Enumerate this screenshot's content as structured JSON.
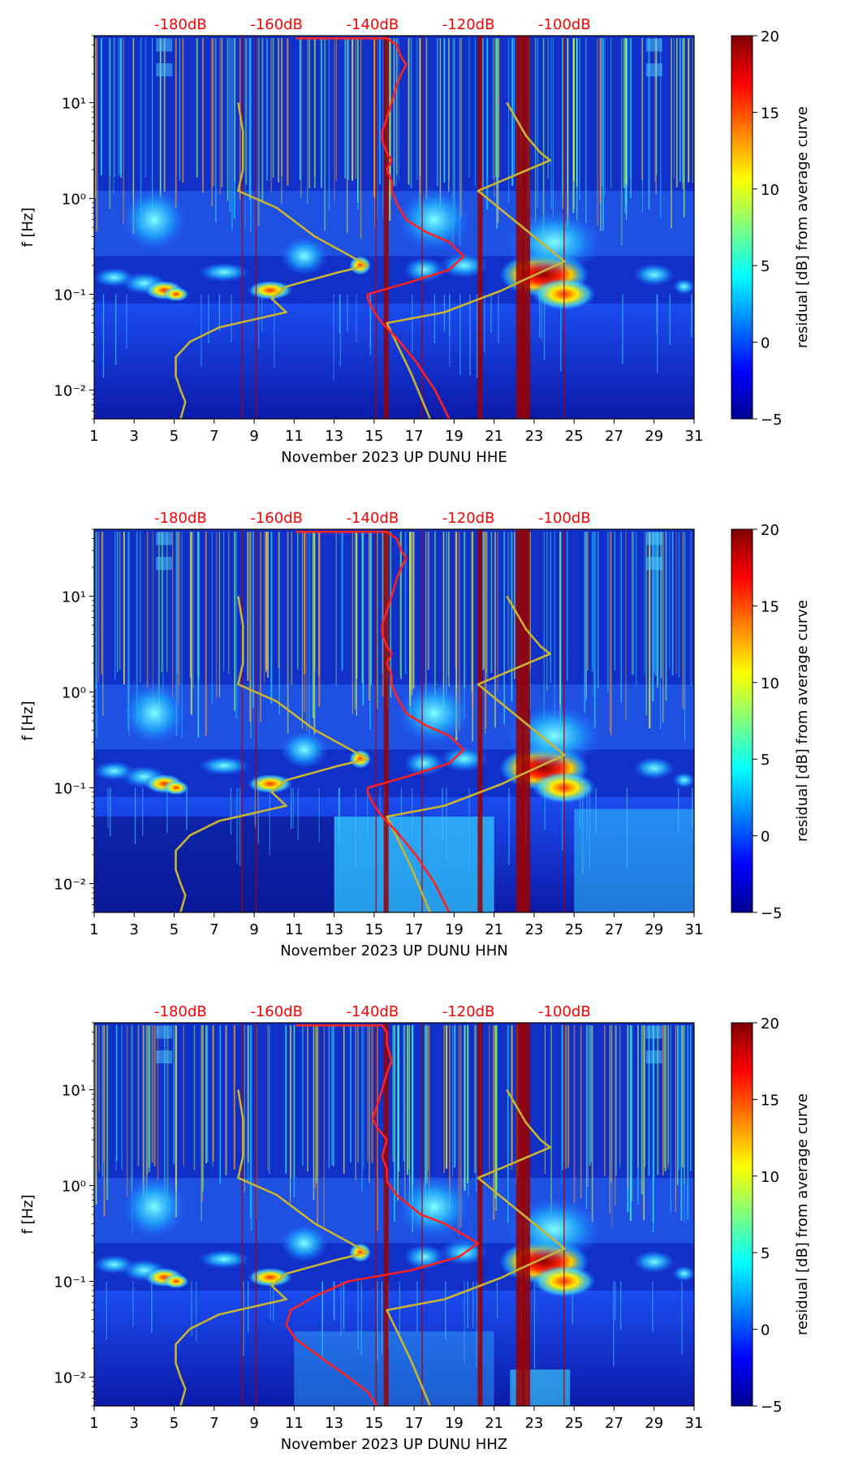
{
  "figure": {
    "kind": "spectrogram-residual-panels"
  },
  "colors": {
    "red_curve": "#ff2020",
    "yellow_curve": "#c8b432",
    "top_labels": "#ff0000",
    "background_field": "#1030c8"
  },
  "chart_data": [
    {
      "type": "heatmap",
      "title": "",
      "xlabel": "November 2023 UP DUNU  HHE",
      "ylabel": "f [Hz]",
      "x_range": [
        1,
        31
      ],
      "x_ticks": [
        "1",
        "3",
        "5",
        "7",
        "9",
        "11",
        "13",
        "15",
        "17",
        "19",
        "21",
        "23",
        "25",
        "27",
        "29",
        "31"
      ],
      "y_scale": "log",
      "y_range": [
        0.005,
        50
      ],
      "y_ticks": [
        "10⁻²",
        "10⁻¹",
        "10⁰",
        "10¹"
      ],
      "colorbar": {
        "label": "residual [dB] from average curve",
        "range": [
          -5,
          20
        ],
        "ticks": [
          "−5",
          "0",
          "5",
          "10",
          "15",
          "20"
        ]
      },
      "top_axis_labels": [
        "-180dB",
        "-160dB",
        "-140dB",
        "-120dB",
        "-100dB"
      ],
      "top_axis_db": [
        -180,
        -160,
        -140,
        -120,
        -100
      ],
      "red_curve": {
        "name": "mean PSD",
        "points": [
          [
            -156,
            47
          ],
          [
            -137,
            47
          ],
          [
            -135,
            40
          ],
          [
            -134,
            30
          ],
          [
            -133,
            25
          ],
          [
            -134,
            20
          ],
          [
            -135,
            15
          ],
          [
            -136,
            10
          ],
          [
            -137,
            7
          ],
          [
            -138,
            5
          ],
          [
            -138,
            4
          ],
          [
            -137,
            3
          ],
          [
            -136,
            2.5
          ],
          [
            -137,
            2
          ],
          [
            -136,
            1.5
          ],
          [
            -136,
            1.2
          ],
          [
            -135,
            0.9
          ],
          [
            -133,
            0.6
          ],
          [
            -129,
            0.45
          ],
          [
            -124,
            0.35
          ],
          [
            -121,
            0.25
          ],
          [
            -124,
            0.18
          ],
          [
            -133,
            0.13
          ],
          [
            -141,
            0.1
          ],
          [
            -141,
            0.09
          ],
          [
            -140,
            0.07
          ],
          [
            -138,
            0.05
          ],
          [
            -135,
            0.035
          ],
          [
            -131,
            0.02
          ],
          [
            -127,
            0.01
          ],
          [
            -124,
            0.005
          ]
        ]
      },
      "yellow_curve": {
        "name": "noise model",
        "points": [
          [
            -168,
            10
          ],
          [
            -167,
            5
          ],
          [
            -167,
            2
          ],
          [
            -168,
            1.2
          ],
          [
            -160,
            0.8
          ],
          [
            -152,
            0.4
          ],
          [
            -141,
            0.2
          ],
          [
            -147,
            0.17
          ],
          [
            -158,
            0.12
          ],
          [
            -161,
            0.09
          ],
          [
            -158,
            0.065
          ],
          [
            -172,
            0.045
          ],
          [
            -178,
            0.032
          ],
          [
            -181,
            0.022
          ],
          [
            -181,
            0.014
          ],
          [
            -180,
            0.01
          ],
          [
            -179,
            0.0075
          ],
          [
            -180,
            0.005
          ]
        ]
      },
      "yellow_curve_right": {
        "name": "noise model (high)",
        "points": [
          [
            -112,
            10
          ],
          [
            -108,
            4.5
          ],
          [
            -105,
            3
          ],
          [
            -103,
            2.5
          ],
          [
            -118,
            1.2
          ],
          [
            -100,
            0.22
          ],
          [
            -110,
            0.13
          ],
          [
            -113,
            0.11
          ],
          [
            -125,
            0.065
          ],
          [
            -137,
            0.05
          ],
          [
            -132,
            0.015
          ],
          [
            -128,
            0.005
          ]
        ]
      },
      "vertical_lines_days": [
        15.6,
        20.3,
        22.3,
        22.6
      ]
    },
    {
      "type": "heatmap",
      "title": "",
      "xlabel": "November 2023 UP DUNU  HHN",
      "ylabel": "f [Hz]",
      "x_range": [
        1,
        31
      ],
      "x_ticks": [
        "1",
        "3",
        "5",
        "7",
        "9",
        "11",
        "13",
        "15",
        "17",
        "19",
        "21",
        "23",
        "25",
        "27",
        "29",
        "31"
      ],
      "y_scale": "log",
      "y_range": [
        0.005,
        50
      ],
      "y_ticks": [
        "10⁻²",
        "10⁻¹",
        "10⁰",
        "10¹"
      ],
      "colorbar": {
        "label": "residual [dB] from average curve",
        "range": [
          -5,
          20
        ],
        "ticks": [
          "−5",
          "0",
          "5",
          "10",
          "15",
          "20"
        ]
      },
      "top_axis_labels": [
        "-180dB",
        "-160dB",
        "-140dB",
        "-120dB",
        "-100dB"
      ],
      "top_axis_db": [
        -180,
        -160,
        -140,
        -120,
        -100
      ],
      "red_curve": {
        "name": "mean PSD",
        "points": [
          [
            -156,
            47
          ],
          [
            -137,
            47
          ],
          [
            -135,
            40
          ],
          [
            -134,
            30
          ],
          [
            -133,
            25
          ],
          [
            -134,
            20
          ],
          [
            -135,
            15
          ],
          [
            -136,
            10
          ],
          [
            -137,
            7
          ],
          [
            -138,
            5
          ],
          [
            -138,
            4
          ],
          [
            -137,
            3
          ],
          [
            -136,
            2.5
          ],
          [
            -137,
            2
          ],
          [
            -136,
            1.5
          ],
          [
            -136,
            1.2
          ],
          [
            -135,
            0.9
          ],
          [
            -133,
            0.6
          ],
          [
            -129,
            0.45
          ],
          [
            -124,
            0.35
          ],
          [
            -121,
            0.25
          ],
          [
            -124,
            0.18
          ],
          [
            -133,
            0.13
          ],
          [
            -141,
            0.1
          ],
          [
            -141,
            0.09
          ],
          [
            -140,
            0.07
          ],
          [
            -138,
            0.05
          ],
          [
            -135,
            0.035
          ],
          [
            -131,
            0.02
          ],
          [
            -127,
            0.01
          ],
          [
            -124,
            0.005
          ]
        ]
      },
      "yellow_curve": {
        "name": "noise model",
        "points": [
          [
            -168,
            10
          ],
          [
            -167,
            5
          ],
          [
            -167,
            2
          ],
          [
            -168,
            1.2
          ],
          [
            -160,
            0.8
          ],
          [
            -152,
            0.4
          ],
          [
            -141,
            0.2
          ],
          [
            -147,
            0.17
          ],
          [
            -158,
            0.12
          ],
          [
            -161,
            0.09
          ],
          [
            -158,
            0.065
          ],
          [
            -172,
            0.045
          ],
          [
            -178,
            0.032
          ],
          [
            -181,
            0.022
          ],
          [
            -181,
            0.014
          ],
          [
            -180,
            0.01
          ],
          [
            -179,
            0.0075
          ],
          [
            -180,
            0.005
          ]
        ]
      },
      "yellow_curve_right": {
        "name": "noise model (high)",
        "points": [
          [
            -112,
            10
          ],
          [
            -108,
            4.5
          ],
          [
            -105,
            3
          ],
          [
            -103,
            2.5
          ],
          [
            -118,
            1.2
          ],
          [
            -100,
            0.22
          ],
          [
            -110,
            0.13
          ],
          [
            -113,
            0.11
          ],
          [
            -125,
            0.065
          ],
          [
            -137,
            0.05
          ],
          [
            -132,
            0.015
          ],
          [
            -128,
            0.005
          ]
        ]
      },
      "vertical_lines_days": [
        15.6,
        20.3,
        22.3,
        22.6
      ]
    },
    {
      "type": "heatmap",
      "title": "",
      "xlabel": "November 2023 UP DUNU  HHZ",
      "ylabel": "f [Hz]",
      "x_range": [
        1,
        31
      ],
      "x_ticks": [
        "1",
        "3",
        "5",
        "7",
        "9",
        "11",
        "13",
        "15",
        "17",
        "19",
        "21",
        "23",
        "25",
        "27",
        "29",
        "31"
      ],
      "y_scale": "log",
      "y_range": [
        0.005,
        50
      ],
      "y_ticks": [
        "10⁻²",
        "10⁻¹",
        "10⁰",
        "10¹"
      ],
      "colorbar": {
        "label": "residual [dB] from average curve",
        "range": [
          -5,
          20
        ],
        "ticks": [
          "−5",
          "0",
          "5",
          "10",
          "15",
          "20"
        ]
      },
      "top_axis_labels": [
        "-180dB",
        "-160dB",
        "-140dB",
        "-120dB",
        "-100dB"
      ],
      "top_axis_db": [
        -180,
        -160,
        -140,
        -120,
        -100
      ],
      "red_curve": {
        "name": "mean PSD",
        "points": [
          [
            -156,
            47
          ],
          [
            -138,
            47
          ],
          [
            -137,
            40
          ],
          [
            -137,
            30
          ],
          [
            -136,
            20
          ],
          [
            -137,
            15
          ],
          [
            -138,
            10
          ],
          [
            -139,
            7
          ],
          [
            -140,
            5
          ],
          [
            -139,
            4
          ],
          [
            -137,
            3
          ],
          [
            -138,
            2
          ],
          [
            -137,
            1.5
          ],
          [
            -137,
            1.1
          ],
          [
            -135,
            0.8
          ],
          [
            -130,
            0.5
          ],
          [
            -125,
            0.4
          ],
          [
            -118,
            0.25
          ],
          [
            -122,
            0.18
          ],
          [
            -132,
            0.13
          ],
          [
            -145,
            0.1
          ],
          [
            -152,
            0.07
          ],
          [
            -157,
            0.05
          ],
          [
            -158,
            0.035
          ],
          [
            -156,
            0.025
          ],
          [
            -150,
            0.015
          ],
          [
            -145,
            0.01
          ],
          [
            -141,
            0.007
          ],
          [
            -139,
            0.005
          ]
        ]
      },
      "yellow_curve": {
        "name": "noise model",
        "points": [
          [
            -168,
            10
          ],
          [
            -167,
            5
          ],
          [
            -167,
            2
          ],
          [
            -168,
            1.2
          ],
          [
            -160,
            0.8
          ],
          [
            -152,
            0.4
          ],
          [
            -141,
            0.2
          ],
          [
            -147,
            0.17
          ],
          [
            -158,
            0.12
          ],
          [
            -161,
            0.09
          ],
          [
            -158,
            0.065
          ],
          [
            -172,
            0.045
          ],
          [
            -178,
            0.032
          ],
          [
            -181,
            0.022
          ],
          [
            -181,
            0.014
          ],
          [
            -180,
            0.01
          ],
          [
            -179,
            0.0075
          ],
          [
            -180,
            0.005
          ]
        ]
      },
      "yellow_curve_right": {
        "name": "noise model (high)",
        "points": [
          [
            -112,
            10
          ],
          [
            -108,
            4.5
          ],
          [
            -105,
            3
          ],
          [
            -103,
            2.5
          ],
          [
            -118,
            1.2
          ],
          [
            -100,
            0.22
          ],
          [
            -110,
            0.13
          ],
          [
            -113,
            0.11
          ],
          [
            -125,
            0.065
          ],
          [
            -137,
            0.05
          ],
          [
            -132,
            0.015
          ],
          [
            -128,
            0.005
          ]
        ]
      },
      "vertical_lines_days": [
        15.6,
        20.3,
        22.3,
        22.6
      ]
    }
  ]
}
